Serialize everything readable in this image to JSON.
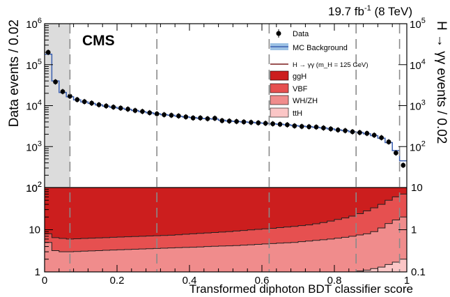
{
  "header": {
    "lumi_prefix": "19.7 fb",
    "lumi_sup": "-1",
    "lumi_suffix": " (8 TeV)",
    "experiment": "CMS"
  },
  "chart_data": {
    "type": "line",
    "xlabel": "Transformed diphoton BDT classifier score",
    "ylabel_left": "Data events / 0.02",
    "ylabel_right": "H → γγ events / 0.02",
    "xlim": [
      0,
      1
    ],
    "x_ticks": [
      "0",
      "0.2",
      "0.4",
      "0.6",
      "0.8",
      "1"
    ],
    "upper_panel": {
      "scale": "log",
      "left_range": [
        100,
        1000000
      ],
      "left_ticks": [
        "10^2",
        "10^3",
        "10^4",
        "10^5",
        "10^6"
      ],
      "right_range": [
        10,
        100000
      ],
      "right_ticks": [
        "10^2",
        "10^3",
        "10^4",
        "10^5"
      ]
    },
    "lower_panel": {
      "scale": "log",
      "left_range": [
        1,
        100
      ],
      "left_ticks": [
        "1",
        "10",
        "10^2"
      ],
      "right_range": [
        0.1,
        10
      ],
      "right_ticks": [
        "0.1",
        "1",
        "10"
      ]
    },
    "excluded_region": [
      0,
      0.07
    ],
    "category_boundaries": [
      0.07,
      0.31,
      0.62,
      0.86,
      0.98
    ],
    "data": {
      "name": "Data",
      "x": [
        0.01,
        0.03,
        0.05,
        0.07,
        0.09,
        0.11,
        0.13,
        0.15,
        0.17,
        0.19,
        0.21,
        0.23,
        0.25,
        0.27,
        0.29,
        0.31,
        0.33,
        0.35,
        0.37,
        0.39,
        0.41,
        0.43,
        0.45,
        0.47,
        0.49,
        0.51,
        0.53,
        0.55,
        0.57,
        0.59,
        0.61,
        0.63,
        0.65,
        0.67,
        0.69,
        0.71,
        0.73,
        0.75,
        0.77,
        0.79,
        0.81,
        0.83,
        0.85,
        0.87,
        0.89,
        0.91,
        0.93,
        0.95,
        0.97,
        0.99
      ],
      "y": [
        200000,
        38000,
        22000,
        17000,
        14000,
        12500,
        11500,
        10500,
        9800,
        9200,
        8700,
        8200,
        7600,
        7200,
        6700,
        6300,
        6000,
        5800,
        5600,
        5300,
        5000,
        5000,
        4800,
        4900,
        4300,
        4200,
        4100,
        4000,
        3900,
        3800,
        3700,
        3600,
        3500,
        3400,
        3200,
        3100,
        3050,
        3000,
        2850,
        2700,
        2550,
        2450,
        2300,
        2200,
        2100,
        1900,
        1650,
        1300,
        700,
        350
      ]
    },
    "background": {
      "name": "MC Background",
      "y": [
        180000,
        40000,
        21000,
        16500,
        13800,
        12300,
        11300,
        10400,
        9700,
        9100,
        8600,
        8100,
        7600,
        7100,
        6700,
        6300,
        6000,
        5800,
        5500,
        5300,
        5100,
        4900,
        4800,
        4700,
        4400,
        4200,
        4100,
        4000,
        3900,
        3800,
        3700,
        3600,
        3500,
        3400,
        3250,
        3150,
        3050,
        2950,
        2850,
        2700,
        2550,
        2450,
        2300,
        2200,
        2050,
        1850,
        1600,
        1250,
        800,
        450
      ]
    },
    "signal_stack": {
      "name": "H → γγ (m_H = 125 GeV)",
      "upper_bounds": {
        "ggH": 100,
        "VBF": [
          8,
          6.5,
          6.2,
          6.0,
          6.1,
          6.2,
          6.3,
          6.4,
          6.5,
          6.6,
          6.7,
          6.8,
          6.9,
          7.0,
          7.1,
          7.2,
          7.3,
          7.4,
          7.6,
          7.8,
          8.0,
          8.2,
          8.4,
          8.6,
          8.8,
          9.0,
          9.3,
          9.6,
          9.9,
          10.2,
          10.5,
          10.8,
          11.2,
          11.6,
          12.0,
          12.5,
          13.0,
          13.8,
          14.8,
          16.0,
          17.5,
          19.0,
          21.0,
          24.0,
          28.0,
          33.0,
          40.0,
          50.0,
          60.0,
          70.0
        ],
        "WH/ZH": [
          5,
          3.2,
          3.0,
          3.0,
          3.05,
          3.1,
          3.15,
          3.2,
          3.25,
          3.3,
          3.35,
          3.4,
          3.45,
          3.5,
          3.55,
          3.6,
          3.65,
          3.7,
          3.75,
          3.8,
          3.85,
          3.9,
          4.0,
          4.05,
          4.1,
          4.15,
          4.2,
          4.3,
          4.4,
          4.5,
          4.6,
          4.7,
          4.8,
          4.9,
          5.0,
          5.2,
          5.4,
          5.6,
          5.8,
          6.0,
          6.3,
          6.6,
          7.0,
          7.5,
          8.0,
          9.0,
          11.0,
          14.0,
          17.0,
          20.0
        ],
        "ttH": [
          1,
          1,
          1,
          1,
          1,
          1,
          1,
          1,
          1,
          1,
          1,
          1,
          1,
          1,
          1,
          1,
          1,
          1,
          1,
          1,
          1,
          1,
          1,
          1,
          1,
          1,
          1,
          1,
          1,
          1,
          1,
          1,
          1,
          1,
          1,
          1,
          1,
          1,
          1,
          1,
          1,
          1,
          1,
          1.05,
          1.1,
          1.2,
          1.3,
          1.5,
          1.7,
          2.0
        ]
      }
    },
    "legend": {
      "placement": "top-right",
      "entries": [
        "Data",
        "MC Background",
        "H → γγ (m_H = 125 GeV)",
        "ggH",
        "VBF",
        "WH/ZH",
        "ttH"
      ]
    },
    "colors": {
      "ggH": "#cc1e1e",
      "VBF": "#e65050",
      "WH/ZH": "#f08c8c",
      "ttH": "#fbc6c6",
      "background_line": "#3a5fb0",
      "background_band": "#9cc1e4",
      "signal_line": "#7a1a1a",
      "excluded": "#dcdcdc",
      "boundary": "#8a8a8a"
    }
  }
}
